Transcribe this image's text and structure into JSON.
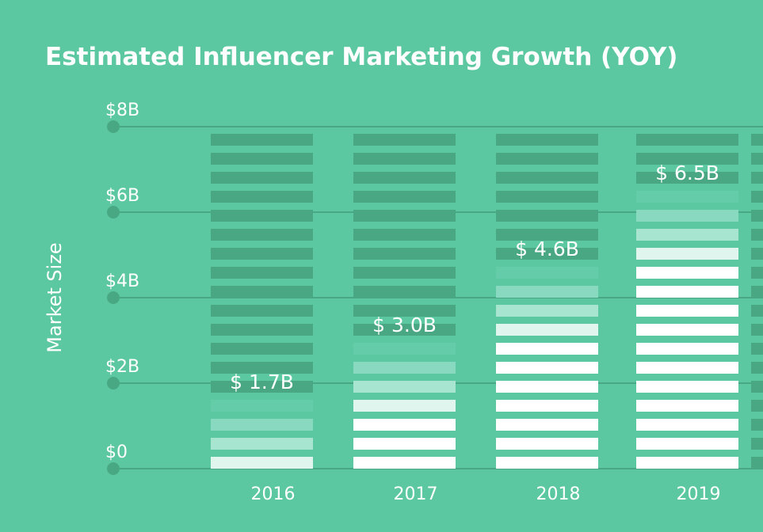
{
  "chart_data": {
    "type": "bar",
    "title": "Estimated Influencer Marketing Growth (YOY)",
    "xlabel": "",
    "ylabel": "Market Size",
    "categories": [
      "2016",
      "2017",
      "2018",
      "2019"
    ],
    "values": [
      1.7,
      3.0,
      4.6,
      6.5
    ],
    "data_labels": [
      "$ 1.7B",
      "$ 3.0B",
      "$ 4.6B",
      "$ 6.5B"
    ],
    "y_ticks": [
      0,
      2,
      4,
      6,
      8
    ],
    "y_tick_labels": [
      "$0",
      "$2B",
      "$4B",
      "$6B",
      "$8B"
    ],
    "ylim": [
      0,
      8
    ],
    "unit": "billion USD",
    "grid": true,
    "legend": "none"
  },
  "colors": {
    "background": "#5cc8a2",
    "empty_stripe": "#4aa783",
    "gridline": "#48a884",
    "filled_stripe": "#ffffff",
    "gradient_stripes": [
      "#64cca9",
      "#88d9bf",
      "#a8e5d0",
      "#dff5ee"
    ]
  }
}
